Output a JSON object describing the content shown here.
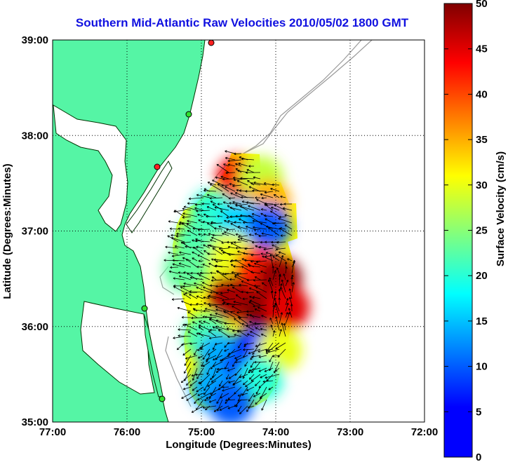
{
  "chart_data": {
    "type": "heatmap",
    "title": "Southern Mid-Atlantic Raw Velocities 2010/05/02 1800 GMT",
    "xlabel": "Longitude (Degrees:Minutes)",
    "ylabel": "Latitude (Degrees:Minutes)",
    "x_ticks": [
      "77:00",
      "76:00",
      "75:00",
      "74:00",
      "73:00",
      "72:00"
    ],
    "y_ticks": [
      "39:00",
      "38:00",
      "37:00",
      "36:00",
      "35:00"
    ],
    "xlim": [
      -77,
      -72
    ],
    "ylim": [
      35,
      39
    ],
    "grid": true,
    "colorbar": {
      "label": "Surface Velocity (cm/s)",
      "range": [
        0,
        50
      ],
      "ticks": [
        "0",
        "5",
        "10",
        "15",
        "20",
        "25",
        "30",
        "35",
        "40",
        "45",
        "50"
      ],
      "colormap": "jet"
    },
    "land_color": "#55f5a5",
    "velocity_regions": [
      {
        "lon": -74.5,
        "lat": 37.55,
        "speed": 44
      },
      {
        "lon": -74.2,
        "lat": 37.55,
        "speed": 28
      },
      {
        "lon": -74.1,
        "lat": 37.3,
        "speed": 35
      },
      {
        "lon": -74.85,
        "lat": 37.2,
        "speed": 20
      },
      {
        "lon": -74.45,
        "lat": 37.1,
        "speed": 16
      },
      {
        "lon": -74.1,
        "lat": 37.05,
        "speed": 10
      },
      {
        "lon": -75.05,
        "lat": 36.9,
        "speed": 22
      },
      {
        "lon": -75.2,
        "lat": 36.6,
        "speed": 23
      },
      {
        "lon": -74.6,
        "lat": 36.75,
        "speed": 30
      },
      {
        "lon": -74.25,
        "lat": 36.6,
        "speed": 42
      },
      {
        "lon": -73.95,
        "lat": 36.5,
        "speed": 49
      },
      {
        "lon": -74.6,
        "lat": 36.3,
        "speed": 48
      },
      {
        "lon": -74.15,
        "lat": 36.15,
        "speed": 50
      },
      {
        "lon": -73.85,
        "lat": 36.2,
        "speed": 45
      },
      {
        "lon": -74.95,
        "lat": 35.9,
        "speed": 22
      },
      {
        "lon": -74.75,
        "lat": 35.7,
        "speed": 14
      },
      {
        "lon": -74.3,
        "lat": 35.75,
        "speed": 8
      },
      {
        "lon": -73.95,
        "lat": 35.75,
        "speed": 30
      },
      {
        "lon": -74.55,
        "lat": 35.45,
        "speed": 6
      },
      {
        "lon": -74.2,
        "lat": 35.45,
        "speed": 20
      },
      {
        "lon": -74.85,
        "lat": 35.35,
        "speed": 14
      },
      {
        "lon": -74.6,
        "lat": 35.2,
        "speed": 10
      }
    ],
    "vector_direction_note": "arrows"
  }
}
